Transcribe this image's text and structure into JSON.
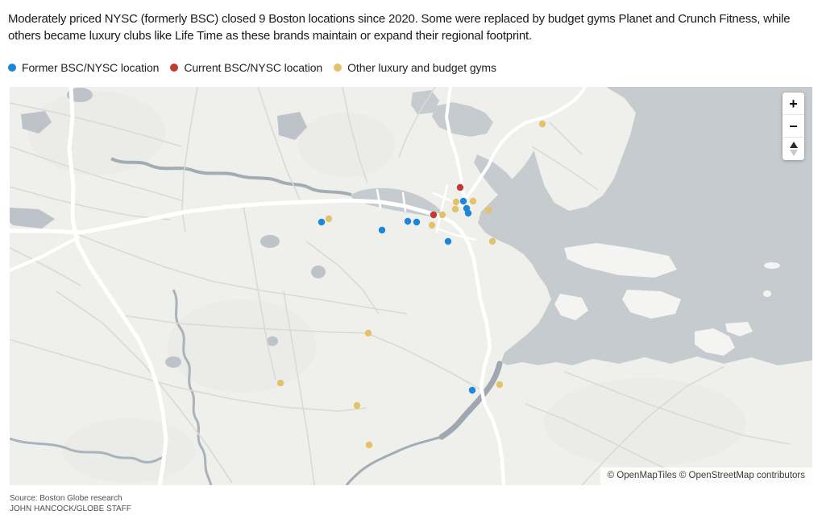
{
  "title": "Moderately priced NYSC (formerly BSC) closed 9 Boston locations since 2020. Some were replaced by budget gyms Planet and Crunch Fitness, while others became luxury clubs like Life Time as these brands maintain or expand their regional footprint.",
  "legend": [
    {
      "label": "Former BSC/NYSC location",
      "color": "#1c87d9"
    },
    {
      "label": "Current BSC/NYSC location",
      "color": "#c23a30"
    },
    {
      "label": "Other luxury and budget gyms",
      "color": "#e3c269"
    }
  ],
  "map": {
    "zoom_in_label": "+",
    "zoom_out_label": "−",
    "attribution": "© OpenMapTiles © OpenStreetMap contributors",
    "marker_radius": 4.2,
    "marker_groups": [
      {
        "id": "other-luxury-budget-gyms",
        "color": "#e3c269",
        "points": [
          [
            673,
            154
          ],
          [
            408,
            272
          ],
          [
            566,
            251
          ],
          [
            587,
            250
          ],
          [
            565,
            260
          ],
          [
            606,
            261
          ],
          [
            549,
            267
          ],
          [
            536,
            280
          ],
          [
            611,
            300
          ],
          [
            457,
            414
          ],
          [
            348,
            476
          ],
          [
            443,
            504
          ],
          [
            458,
            553
          ],
          [
            620,
            478
          ]
        ]
      },
      {
        "id": "former-bsc-nysc",
        "color": "#1c87d9",
        "points": [
          [
            399,
            276
          ],
          [
            474,
            286
          ],
          [
            506,
            275
          ],
          [
            517,
            276
          ],
          [
            575,
            250
          ],
          [
            579,
            259
          ],
          [
            581,
            265
          ],
          [
            556,
            300
          ],
          [
            586,
            485
          ]
        ]
      },
      {
        "id": "current-bsc-nysc",
        "color": "#c23a30",
        "points": [
          [
            571,
            233
          ],
          [
            538,
            267
          ]
        ]
      }
    ],
    "colors": {
      "land": "#efefec",
      "water": "#c6cbcf",
      "road_major": "#ffffff",
      "road_minor": "#d9dad6"
    }
  },
  "source_line1": "Source: Boston Globe research",
  "source_line2": "JOHN HANCOCK/GLOBE STAFF"
}
